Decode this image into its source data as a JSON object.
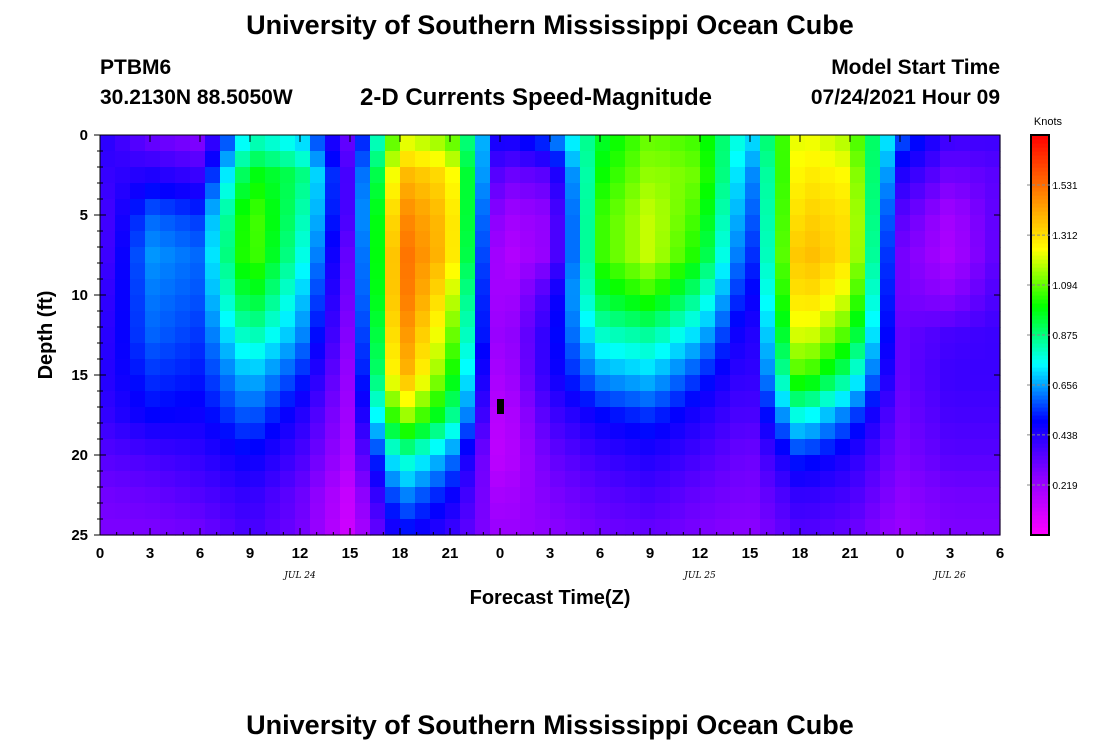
{
  "page": {
    "title": "University of Southern Mississippi Ocean Cube",
    "footer_title": "University of Southern Mississippi Ocean Cube"
  },
  "station": {
    "id": "PTBM6",
    "coords": "30.2130N  88.5050W"
  },
  "plot_title": "2-D Currents Speed-Magnitude",
  "model": {
    "label": "Model Start Time",
    "time": "07/24/2021 Hour 09"
  },
  "colors": {
    "stops": [
      "#ff00ff",
      "#8f00ff",
      "#0000ff",
      "#00ffff",
      "#00ff00",
      "#ffff00",
      "#ff7f00",
      "#ff0000"
    ],
    "marker": "#000000"
  },
  "chart_data": {
    "type": "heatmap",
    "title": "2-D Currents Speed-Magnitude",
    "xlabel": "Forecast Time(Z)",
    "ylabel": "Depth (ft)",
    "xlim": [
      0,
      54
    ],
    "ylim": [
      0,
      25
    ],
    "x_ticks": [
      0,
      3,
      6,
      9,
      12,
      15,
      18,
      21,
      24,
      27,
      30,
      33,
      36,
      39,
      42,
      45,
      48,
      51,
      54
    ],
    "x_tick_labels": [
      "0",
      "3",
      "6",
      "9",
      "12",
      "15",
      "18",
      "21",
      "0",
      "3",
      "6",
      "9",
      "12",
      "15",
      "18",
      "21",
      "0",
      "3",
      "6"
    ],
    "y_ticks": [
      0,
      5,
      10,
      15,
      20,
      25
    ],
    "y_tick_labels": [
      "0",
      "5",
      "10",
      "15",
      "20",
      "25"
    ],
    "date_labels": [
      {
        "x": 12,
        "text": "JUL 24"
      },
      {
        "x": 36,
        "text": "JUL 25"
      },
      {
        "x": 51,
        "text": "JUL 26"
      }
    ],
    "colorbar": {
      "unit": "Knots",
      "range": [
        0.0,
        1.75
      ],
      "ticks": [
        1.531,
        1.312,
        1.094,
        0.875,
        0.656,
        0.438,
        0.219
      ],
      "tick_labels": [
        "1.531",
        "1.312",
        "1.094",
        "0.875",
        "0.656",
        "0.438",
        "0.219"
      ]
    },
    "depths_ft": [
      0,
      2.5,
      5,
      7.5,
      10,
      12.5,
      15,
      17.5,
      20,
      22.5,
      25
    ],
    "times": [
      0,
      3,
      6,
      9,
      12,
      15,
      18,
      21,
      24,
      27,
      30,
      33,
      36,
      39,
      42,
      45,
      48,
      51,
      54
    ],
    "speed_knots": [
      [
        0.45,
        0.3,
        0.25,
        0.8,
        0.7,
        0.3,
        1.2,
        1.1,
        0.45,
        0.6,
        0.95,
        1.1,
        1.05,
        0.7,
        1.25,
        1.15,
        0.6,
        0.4,
        0.4
      ],
      [
        0.4,
        0.45,
        0.4,
        1.0,
        0.9,
        0.35,
        1.4,
        1.3,
        0.3,
        0.35,
        1.0,
        1.15,
        1.1,
        0.6,
        1.3,
        1.25,
        0.45,
        0.3,
        0.35
      ],
      [
        0.35,
        0.6,
        0.55,
        1.1,
        0.85,
        0.35,
        1.5,
        1.35,
        0.2,
        0.25,
        1.05,
        1.2,
        1.05,
        0.55,
        1.35,
        1.3,
        0.35,
        0.2,
        0.35
      ],
      [
        0.35,
        0.65,
        0.6,
        1.1,
        0.8,
        0.3,
        1.55,
        1.35,
        0.15,
        0.25,
        1.05,
        1.2,
        1.0,
        0.5,
        1.4,
        1.3,
        0.3,
        0.18,
        0.35
      ],
      [
        0.38,
        0.62,
        0.58,
        1.0,
        0.72,
        0.28,
        1.55,
        1.25,
        0.15,
        0.4,
        0.95,
        1.05,
        0.85,
        0.45,
        1.35,
        1.2,
        0.3,
        0.25,
        0.38
      ],
      [
        0.4,
        0.6,
        0.55,
        0.85,
        0.65,
        0.25,
        1.5,
        1.15,
        0.18,
        0.45,
        0.8,
        0.85,
        0.7,
        0.4,
        1.25,
        1.05,
        0.32,
        0.38,
        0.4
      ],
      [
        0.42,
        0.55,
        0.52,
        0.7,
        0.55,
        0.22,
        1.45,
        1.05,
        0.15,
        0.45,
        0.65,
        0.7,
        0.55,
        0.38,
        1.1,
        0.85,
        0.32,
        0.4,
        0.4
      ],
      [
        0.4,
        0.5,
        0.48,
        0.6,
        0.45,
        0.2,
        1.2,
        0.9,
        0.12,
        0.38,
        0.5,
        0.55,
        0.45,
        0.35,
        0.8,
        0.6,
        0.3,
        0.38,
        0.38
      ],
      [
        0.35,
        0.38,
        0.42,
        0.5,
        0.38,
        0.18,
        0.85,
        0.65,
        0.12,
        0.32,
        0.4,
        0.45,
        0.38,
        0.3,
        0.55,
        0.45,
        0.28,
        0.35,
        0.35
      ],
      [
        0.3,
        0.32,
        0.36,
        0.42,
        0.32,
        0.12,
        0.65,
        0.5,
        0.18,
        0.28,
        0.34,
        0.38,
        0.32,
        0.28,
        0.42,
        0.38,
        0.25,
        0.3,
        0.3
      ],
      [
        0.28,
        0.28,
        0.3,
        0.38,
        0.3,
        0.1,
        0.5,
        0.4,
        0.22,
        0.25,
        0.3,
        0.32,
        0.28,
        0.25,
        0.36,
        0.32,
        0.22,
        0.28,
        0.28
      ]
    ],
    "marker": {
      "x": 24,
      "depth_ft": 17,
      "shape": "small black rectangle"
    }
  }
}
